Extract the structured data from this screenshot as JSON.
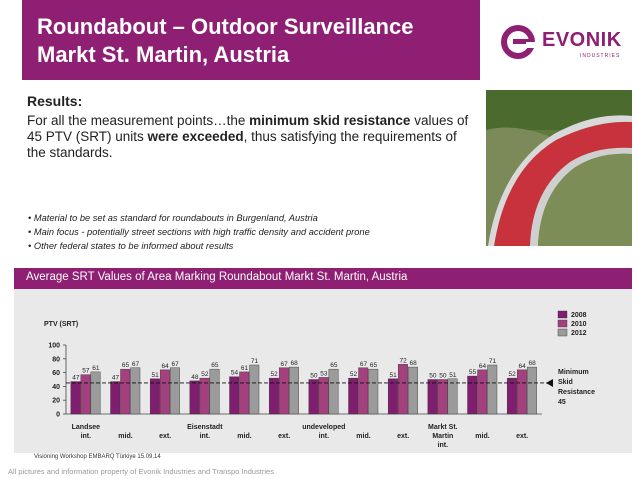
{
  "header": {
    "title_line1": "Roundabout – Outdoor Surveillance",
    "title_line2": "Markt St. Martin, Austria",
    "logo_word": "EVONIK",
    "logo_sub": "INDUSTRIES"
  },
  "results": {
    "heading": "Results:",
    "p1": "For all the measurement points…the ",
    "p1_bold": "minimum skid resistance",
    "p2": " values of 45 PTV (SRT) units ",
    "p2_bold": "were exceeded",
    "p3": ", thus satisfying the requirements of the standards."
  },
  "bullets": [
    "Material to be set as standard for roundabouts in Burgenland, Austria",
    "Main focus - potentially street sections with high traffic density and accident prone",
    "Other federal states to be informed about results"
  ],
  "colors": {
    "brand": "#8e1f72",
    "y2008": "#7f1d6e",
    "y2010": "#a3407d",
    "y2012": "#9b9b9b",
    "photo_road": "#c8323c"
  },
  "chart_data": {
    "type": "bar",
    "title": "Average SRT Values of Area Marking Roundabout Markt St. Martin, Austria",
    "ylabel": "PTV (SRT)",
    "ylim": [
      0,
      100
    ],
    "yticks": [
      0,
      20,
      40,
      60,
      80,
      100
    ],
    "grid": false,
    "legend": "top-right",
    "categories": [
      "Landsee int.",
      "mid.",
      "ext.",
      "Eisenstadt int.",
      "mid.",
      "ext.",
      "undeveloped int.",
      "mid.",
      "ext.",
      "Markt St. Martin int.",
      "mid.",
      "ext."
    ],
    "tick_labels": [
      {
        "top": "Landsee",
        "bottom": "int."
      },
      {
        "top": "",
        "bottom": "mid."
      },
      {
        "top": "",
        "bottom": "ext."
      },
      {
        "top": "Eisenstadt",
        "bottom": "int."
      },
      {
        "top": "",
        "bottom": "mid."
      },
      {
        "top": "",
        "bottom": "ext."
      },
      {
        "top": "undeveloped",
        "bottom": "int."
      },
      {
        "top": "",
        "bottom": "mid."
      },
      {
        "top": "",
        "bottom": "ext."
      },
      {
        "top": "Markt St.",
        "bottom": "Martin",
        "third": "int."
      },
      {
        "top": "",
        "bottom": "mid."
      },
      {
        "top": "",
        "bottom": "ext."
      }
    ],
    "series": [
      {
        "name": "2008",
        "values": [
          47,
          47,
          51,
          48,
          54,
          52,
          50,
          52,
          51,
          50,
          55,
          52
        ]
      },
      {
        "name": "2010",
        "values": [
          57,
          65,
          64,
          52,
          61,
          67,
          53,
          67,
          72,
          50,
          64,
          64
        ]
      },
      {
        "name": "2012",
        "values": [
          61,
          67,
          67,
          65,
          71,
          68,
          65,
          65,
          68,
          51,
          71,
          68
        ]
      }
    ],
    "data_labels": [
      [
        "47",
        "57",
        "61"
      ],
      [
        "47",
        "65",
        "67"
      ],
      [
        "51",
        "64",
        "67"
      ],
      [
        "48",
        "52",
        "65"
      ],
      [
        "54",
        "61",
        "71"
      ],
      [
        "52",
        "67",
        "68"
      ],
      [
        "50",
        "53",
        "65"
      ],
      [
        "52",
        "67",
        "65"
      ],
      [
        "51",
        "72",
        "68"
      ],
      [
        "50",
        "50",
        "51"
      ],
      [
        "55",
        "64",
        "71"
      ],
      [
        "52",
        "64",
        "68"
      ]
    ],
    "threshold": {
      "value": 45,
      "label_lines": [
        "Minimum",
        "Skid",
        "Resistance",
        "45"
      ]
    }
  },
  "footer": {
    "event": "Visioning Workshop EMBARQ Türkiye  15.09.14",
    "copyright": "All pictures and information property of Evonik Industries and Transpo Industries"
  }
}
